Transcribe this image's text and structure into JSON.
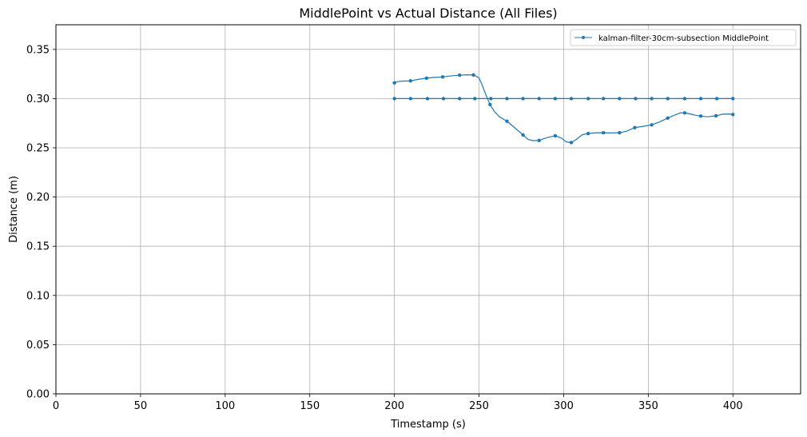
{
  "chart_data": {
    "type": "line",
    "title": "MiddlePoint vs Actual Distance (All Files)",
    "xlabel": "Timestamp (s)",
    "ylabel": "Distance (m)",
    "xlim": [
      0,
      440
    ],
    "ylim": [
      0,
      0.375
    ],
    "xticks": [
      0,
      50,
      100,
      150,
      200,
      250,
      300,
      350,
      400
    ],
    "yticks": [
      0.0,
      0.05,
      0.1,
      0.15,
      0.2,
      0.25,
      0.3,
      0.35
    ],
    "xtick_labels": [
      "0",
      "50",
      "100",
      "150",
      "200",
      "250",
      "300",
      "350",
      "400"
    ],
    "ytick_labels": [
      "0.00",
      "0.05",
      "0.10",
      "0.15",
      "0.20",
      "0.25",
      "0.30",
      "0.35"
    ],
    "grid": true,
    "legend": {
      "placement": "upper-right",
      "entries": [
        "kalman-filter-30cm-subsection MiddlePoint"
      ]
    },
    "color": "#1f77b4",
    "series": [
      {
        "name": "kalman-filter-30cm-subsection MiddlePoint",
        "x": [
          200,
          201.5,
          203,
          205,
          209.5,
          214,
          219,
          223.5,
          228.5,
          233,
          238.5,
          243,
          246.7,
          248.5,
          250,
          252,
          254,
          256.5,
          259,
          262,
          266.5,
          271,
          276,
          279,
          282,
          285.5,
          290,
          295,
          298.5,
          301.5,
          304.5,
          307.5,
          311,
          314.5,
          319,
          323.5,
          328,
          333,
          337,
          342,
          347,
          352,
          356.5,
          361.5,
          366,
          369,
          371.5,
          374.5,
          378,
          381,
          385,
          390,
          394,
          398,
          400
        ],
        "y": [
          0.316,
          0.317,
          0.3175,
          0.3178,
          0.318,
          0.3195,
          0.3208,
          0.3215,
          0.322,
          0.323,
          0.3238,
          0.3242,
          0.324,
          0.3225,
          0.321,
          0.313,
          0.304,
          0.294,
          0.287,
          0.2815,
          0.277,
          0.2705,
          0.263,
          0.2585,
          0.2572,
          0.2575,
          0.2603,
          0.2622,
          0.26,
          0.256,
          0.2553,
          0.2585,
          0.2633,
          0.2645,
          0.2652,
          0.2653,
          0.2651,
          0.2653,
          0.2668,
          0.2705,
          0.2718,
          0.2733,
          0.2762,
          0.2802,
          0.2835,
          0.2855,
          0.2855,
          0.2845,
          0.283,
          0.2822,
          0.2815,
          0.2825,
          0.2842,
          0.2843,
          0.2838
        ],
        "marker_x": [
          200,
          209.5,
          219,
          228.5,
          238.5,
          246.7,
          256.5,
          266.5,
          276,
          285.5,
          295,
          304.5,
          314.5,
          323.5,
          333,
          342,
          352,
          361.5,
          371.5,
          381,
          390,
          400
        ],
        "marker_y": [
          0.316,
          0.318,
          0.3208,
          0.322,
          0.3238,
          0.324,
          0.294,
          0.277,
          0.263,
          0.2575,
          0.2622,
          0.2553,
          0.2645,
          0.2653,
          0.2653,
          0.2705,
          0.2733,
          0.2802,
          0.2855,
          0.2822,
          0.2825,
          0.2838
        ]
      },
      {
        "name": "",
        "x": [
          200,
          209.5,
          219.5,
          229,
          238.5,
          247.5,
          257,
          266.5,
          276,
          285.5,
          295,
          304.5,
          314.5,
          323.5,
          333,
          342.5,
          352,
          361.5,
          371.5,
          381,
          390.5,
          400
        ],
        "y": [
          0.3,
          0.3,
          0.3,
          0.3,
          0.3,
          0.3,
          0.3,
          0.3,
          0.3,
          0.3,
          0.3,
          0.3,
          0.3,
          0.3,
          0.3,
          0.3,
          0.3,
          0.3,
          0.3,
          0.3,
          0.3,
          0.3
        ]
      }
    ]
  }
}
